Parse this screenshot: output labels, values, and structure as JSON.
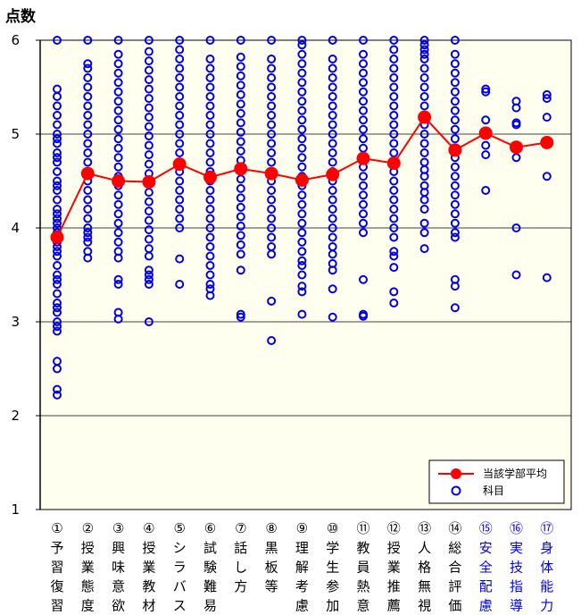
{
  "chart_data": {
    "type": "scatter",
    "title": "",
    "ylabel": "点数",
    "xlabel": "",
    "ylim": [
      1,
      6
    ],
    "yticks": [
      1,
      2,
      3,
      4,
      5,
      6
    ],
    "grid": true,
    "legend_position": "bottom-right",
    "colors": {
      "plot_background": "#fffff0",
      "scatter": "#0000ee",
      "average": "#ff0000",
      "normal_label": "#000000",
      "highlight_label": "#0000ff"
    },
    "categories": [
      {
        "num": "①",
        "label": "予習復習",
        "highlight": false
      },
      {
        "num": "②",
        "label": "授業態度",
        "highlight": false
      },
      {
        "num": "③",
        "label": "興味意欲",
        "highlight": false
      },
      {
        "num": "④",
        "label": "授業教材",
        "highlight": false
      },
      {
        "num": "⑤",
        "label": "シラバス",
        "highlight": false
      },
      {
        "num": "⑥",
        "label": "試験難易",
        "highlight": false
      },
      {
        "num": "⑦",
        "label": "話し方",
        "highlight": false
      },
      {
        "num": "⑧",
        "label": "黒板等",
        "highlight": false
      },
      {
        "num": "⑨",
        "label": "理解考慮",
        "highlight": false
      },
      {
        "num": "⑩",
        "label": "学生参加",
        "highlight": false
      },
      {
        "num": "⑪",
        "label": "教員熱意",
        "highlight": false
      },
      {
        "num": "⑫",
        "label": "授業推薦",
        "highlight": false
      },
      {
        "num": "⑬",
        "label": "人格無視",
        "highlight": false
      },
      {
        "num": "⑭",
        "label": "総合評価",
        "highlight": false
      },
      {
        "num": "⑮",
        "label": "安全配慮",
        "highlight": true
      },
      {
        "num": "⑯",
        "label": "実技指導",
        "highlight": true
      },
      {
        "num": "⑰",
        "label": "身体能力",
        "highlight": true
      }
    ],
    "series": [
      {
        "name": "当該学部平均",
        "type": "line",
        "values": [
          3.9,
          4.58,
          4.5,
          4.49,
          4.68,
          4.54,
          4.63,
          4.58,
          4.51,
          4.57,
          4.74,
          4.69,
          5.18,
          4.83,
          5.01,
          4.86,
          4.91
        ]
      },
      {
        "name": "科目",
        "type": "scatter",
        "points": [
          [
            6.0,
            5.48,
            5.4,
            5.3,
            5.2,
            5.1,
            5.0,
            4.95,
            4.9,
            4.8,
            4.75,
            4.7,
            4.6,
            4.5,
            4.45,
            4.4,
            4.3,
            4.2,
            4.15,
            4.1,
            4.05,
            4.0,
            3.95,
            3.85,
            3.8,
            3.75,
            3.7,
            3.6,
            3.5,
            3.45,
            3.4,
            3.3,
            3.2,
            3.15,
            3.1,
            3.0,
            2.95,
            2.9,
            2.58,
            2.5,
            2.28,
            2.22
          ],
          [
            6.0,
            5.75,
            5.7,
            5.6,
            5.5,
            5.4,
            5.3,
            5.2,
            5.1,
            5.0,
            4.9,
            4.8,
            4.7,
            4.6,
            4.5,
            4.4,
            4.3,
            4.2,
            4.1,
            4.0,
            3.95,
            3.9,
            3.85,
            3.75,
            3.68
          ],
          [
            6.0,
            5.85,
            5.75,
            5.65,
            5.55,
            5.45,
            5.35,
            5.25,
            5.15,
            5.05,
            4.95,
            4.85,
            4.75,
            4.65,
            4.55,
            4.45,
            4.35,
            4.25,
            4.15,
            4.05,
            3.95,
            3.85,
            3.75,
            3.68,
            3.45,
            3.4,
            3.1,
            3.03
          ],
          [
            6.0,
            5.88,
            5.78,
            5.68,
            5.58,
            5.48,
            5.38,
            5.28,
            5.18,
            5.08,
            4.98,
            4.88,
            4.78,
            4.68,
            4.58,
            4.48,
            4.38,
            4.28,
            4.18,
            4.08,
            3.98,
            3.88,
            3.78,
            3.7,
            3.55,
            3.5,
            3.45,
            3.4,
            3.0
          ],
          [
            6.0,
            5.9,
            5.8,
            5.7,
            5.6,
            5.5,
            5.4,
            5.3,
            5.2,
            5.1,
            5.0,
            4.9,
            4.8,
            4.7,
            4.6,
            4.5,
            4.4,
            4.3,
            4.2,
            4.1,
            4.0,
            3.67,
            3.4
          ],
          [
            6.0,
            5.8,
            5.7,
            5.6,
            5.5,
            5.4,
            5.3,
            5.2,
            5.1,
            5.0,
            4.9,
            4.8,
            4.7,
            4.6,
            4.5,
            4.4,
            4.3,
            4.2,
            4.1,
            4.0,
            3.9,
            3.8,
            3.7,
            3.6,
            3.5,
            3.4,
            3.35,
            3.28
          ],
          [
            6.0,
            5.82,
            5.72,
            5.62,
            5.52,
            5.42,
            5.32,
            5.22,
            5.12,
            5.02,
            4.92,
            4.82,
            4.72,
            4.62,
            4.52,
            4.42,
            4.32,
            4.22,
            4.12,
            4.02,
            3.92,
            3.82,
            3.72,
            3.55,
            3.08,
            3.05
          ],
          [
            6.0,
            5.8,
            5.7,
            5.6,
            5.5,
            5.4,
            5.3,
            5.2,
            5.1,
            5.0,
            4.9,
            4.8,
            4.7,
            4.6,
            4.5,
            4.4,
            4.3,
            4.2,
            4.1,
            4.0,
            3.9,
            3.8,
            3.72,
            3.22,
            2.8
          ],
          [
            6.0,
            5.95,
            5.85,
            5.75,
            5.65,
            5.55,
            5.45,
            5.35,
            5.25,
            5.15,
            5.05,
            4.95,
            4.85,
            4.75,
            4.65,
            4.55,
            4.45,
            4.35,
            4.25,
            4.15,
            4.05,
            3.95,
            3.85,
            3.75,
            3.65,
            3.6,
            3.5,
            3.38,
            3.32,
            3.08
          ],
          [
            6.0,
            5.8,
            5.7,
            5.6,
            5.5,
            5.4,
            5.3,
            5.2,
            5.1,
            5.0,
            4.9,
            4.8,
            4.7,
            4.6,
            4.5,
            4.4,
            4.3,
            4.2,
            4.1,
            4.0,
            3.9,
            3.8,
            3.72,
            3.62,
            3.55,
            3.35,
            3.05
          ],
          [
            6.0,
            5.85,
            5.75,
            5.65,
            5.55,
            5.45,
            5.35,
            5.25,
            5.15,
            5.05,
            4.95,
            4.85,
            4.75,
            4.65,
            4.55,
            4.45,
            4.35,
            4.25,
            4.15,
            4.05,
            3.95,
            3.45,
            3.08,
            3.06
          ],
          [
            6.0,
            5.9,
            5.8,
            5.7,
            5.6,
            5.5,
            5.4,
            5.3,
            5.2,
            5.1,
            5.0,
            4.9,
            4.8,
            4.7,
            4.6,
            4.5,
            4.4,
            4.3,
            4.2,
            4.1,
            4.0,
            3.9,
            3.75,
            3.7,
            3.58,
            3.32,
            3.2
          ],
          [
            6.0,
            5.95,
            5.9,
            5.85,
            5.8,
            5.7,
            5.6,
            5.5,
            5.4,
            5.3,
            5.2,
            5.1,
            5.0,
            4.9,
            4.8,
            4.7,
            4.62,
            4.55,
            4.45,
            4.38,
            4.3,
            4.2,
            4.05,
            3.95,
            3.78
          ],
          [
            6.0,
            5.85,
            5.75,
            5.65,
            5.55,
            5.45,
            5.35,
            5.25,
            5.15,
            5.05,
            4.95,
            4.85,
            4.75,
            4.65,
            4.55,
            4.45,
            4.35,
            4.25,
            4.15,
            4.05,
            3.95,
            3.9,
            3.45,
            3.38,
            3.15
          ],
          [
            5.48,
            5.45,
            5.15,
            5.0,
            4.88,
            4.78,
            4.4
          ],
          [
            5.35,
            5.28,
            5.12,
            5.1,
            4.85,
            4.75,
            4.0,
            3.5
          ],
          [
            5.42,
            5.38,
            5.18,
            4.9,
            4.55,
            3.47
          ]
        ]
      }
    ]
  }
}
